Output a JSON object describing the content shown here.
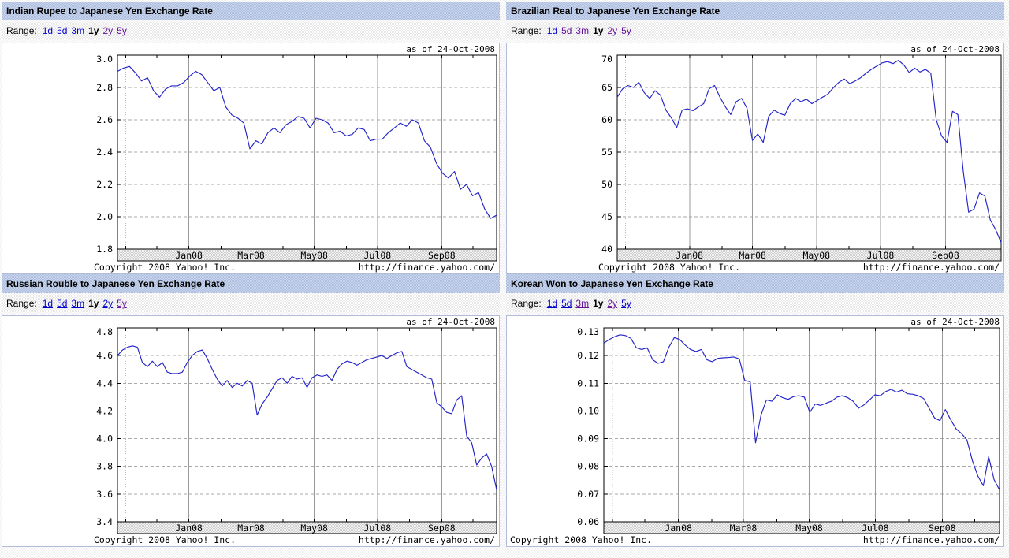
{
  "page": {
    "as_of_label": "as of 24-Oct-2008",
    "range_label": "Range:",
    "copyright": "Copyright 2008 Yahoo! Inc.",
    "source_url": "http://finance.yahoo.com/"
  },
  "colors": {
    "line": "#2424c8",
    "link": "#0000cc",
    "link_visited": "#661199",
    "title_bar": "#bcc9e5",
    "grid": "#aaaaaa",
    "frame": "#000000"
  },
  "panels": [
    {
      "range_links": [
        {
          "label": "1d",
          "visited": false
        },
        {
          "label": "5d",
          "visited": false
        },
        {
          "label": "3m",
          "visited": false
        },
        {
          "label": "1y",
          "selected": true
        },
        {
          "label": "2y",
          "visited": true
        },
        {
          "label": "5y",
          "visited": true
        }
      ]
    },
    {
      "range_links": [
        {
          "label": "1d",
          "visited": false
        },
        {
          "label": "5d",
          "visited": true
        },
        {
          "label": "3m",
          "visited": true
        },
        {
          "label": "1y",
          "selected": true
        },
        {
          "label": "2y",
          "visited": true
        },
        {
          "label": "5y",
          "visited": true
        }
      ]
    },
    {
      "range_links": [
        {
          "label": "1d",
          "visited": false
        },
        {
          "label": "5d",
          "visited": false
        },
        {
          "label": "3m",
          "visited": false
        },
        {
          "label": "1y",
          "selected": true
        },
        {
          "label": "2y",
          "visited": false
        },
        {
          "label": "5y",
          "visited": true
        }
      ]
    },
    {
      "range_links": [
        {
          "label": "1d",
          "visited": false
        },
        {
          "label": "5d",
          "visited": false
        },
        {
          "label": "3m",
          "visited": true
        },
        {
          "label": "1y",
          "selected": true
        },
        {
          "label": "2y",
          "visited": true
        },
        {
          "label": "5y",
          "visited": false
        }
      ]
    }
  ],
  "chart_data": [
    {
      "type": "line",
      "title": "Indian Rupee to Japanese Yen Exchange Rate",
      "as_of": "24-Oct-2008",
      "x_range": "24-Oct-2007 to 24-Oct-2008",
      "x_tick_labels": [
        "Jan08",
        "Mar08",
        "May08",
        "Jul08",
        "Sep08"
      ],
      "ylim": [
        1.8,
        3.0
      ],
      "y_ticks": [
        3.0,
        2.8,
        2.6,
        2.4,
        2.2,
        2.0,
        1.8
      ],
      "y_tick_labels": [
        "3.0",
        "2.8",
        "2.6",
        "2.4",
        "2.2",
        "2.0",
        "1.8"
      ],
      "values": [
        2.9,
        2.92,
        2.93,
        2.89,
        2.84,
        2.86,
        2.78,
        2.74,
        2.79,
        2.81,
        2.81,
        2.83,
        2.87,
        2.9,
        2.88,
        2.83,
        2.78,
        2.8,
        2.68,
        2.63,
        2.61,
        2.58,
        2.42,
        2.47,
        2.45,
        2.52,
        2.55,
        2.52,
        2.57,
        2.59,
        2.62,
        2.61,
        2.55,
        2.61,
        2.6,
        2.58,
        2.52,
        2.53,
        2.5,
        2.51,
        2.55,
        2.54,
        2.47,
        2.48,
        2.48,
        2.52,
        2.55,
        2.58,
        2.56,
        2.6,
        2.58,
        2.47,
        2.43,
        2.33,
        2.27,
        2.24,
        2.28,
        2.17,
        2.2,
        2.13,
        2.15,
        2.05,
        1.99,
        2.01
      ]
    },
    {
      "type": "line",
      "title": "Brazilian Real to Japanese Yen Exchange Rate",
      "as_of": "24-Oct-2008",
      "x_range": "24-Oct-2007 to 24-Oct-2008",
      "x_tick_labels": [
        "Jan08",
        "Mar08",
        "May08",
        "Jul08",
        "Sep08"
      ],
      "ylim": [
        40,
        70
      ],
      "y_ticks": [
        70,
        65,
        60,
        55,
        50,
        45,
        40
      ],
      "y_tick_labels": [
        "70",
        "65",
        "60",
        "55",
        "50",
        "45",
        "40"
      ],
      "values": [
        63.5,
        64.8,
        65.3,
        65.0,
        65.8,
        64.2,
        63.3,
        64.5,
        63.8,
        61.5,
        60.3,
        58.8,
        61.5,
        61.7,
        61.4,
        62.0,
        62.5,
        64.8,
        65.3,
        63.5,
        62.0,
        60.8,
        62.8,
        63.3,
        61.8,
        56.8,
        57.8,
        56.5,
        60.5,
        61.5,
        61.0,
        60.7,
        62.5,
        63.3,
        62.8,
        63.2,
        62.5,
        63.0,
        63.5,
        64.0,
        65.0,
        65.8,
        66.3,
        65.6,
        66.0,
        66.5,
        67.2,
        67.8,
        68.3,
        68.8,
        69.0,
        68.7,
        69.2,
        68.5,
        67.3,
        68.0,
        67.4,
        67.8,
        67.2,
        60.0,
        57.5,
        56.5,
        61.3,
        60.8,
        52.0,
        45.7,
        46.2,
        48.7,
        48.2,
        44.5,
        43.0,
        41.0
      ]
    },
    {
      "type": "line",
      "title": "Russian Rouble to Japanese Yen Exchange Rate",
      "as_of": "24-Oct-2008",
      "x_range": "24-Oct-2007 to 24-Oct-2008",
      "x_tick_labels": [
        "Jan08",
        "Mar08",
        "May08",
        "Jul08",
        "Sep08"
      ],
      "ylim": [
        3.4,
        4.8
      ],
      "y_ticks": [
        4.8,
        4.6,
        4.4,
        4.2,
        4.0,
        3.8,
        3.6,
        3.4
      ],
      "y_tick_labels": [
        "4.8",
        "4.6",
        "4.4",
        "4.2",
        "4.0",
        "3.8",
        "3.6",
        "3.4"
      ],
      "values": [
        4.6,
        4.64,
        4.66,
        4.67,
        4.66,
        4.55,
        4.52,
        4.56,
        4.52,
        4.55,
        4.48,
        4.47,
        4.47,
        4.48,
        4.55,
        4.6,
        4.63,
        4.64,
        4.58,
        4.5,
        4.43,
        4.38,
        4.42,
        4.37,
        4.4,
        4.38,
        4.42,
        4.4,
        4.17,
        4.25,
        4.3,
        4.36,
        4.42,
        4.44,
        4.4,
        4.45,
        4.43,
        4.44,
        4.37,
        4.44,
        4.46,
        4.45,
        4.46,
        4.42,
        4.5,
        4.54,
        4.56,
        4.55,
        4.53,
        4.55,
        4.57,
        4.58,
        4.59,
        4.6,
        4.58,
        4.6,
        4.62,
        4.63,
        4.52,
        4.5,
        4.48,
        4.46,
        4.44,
        4.43,
        4.26,
        4.23,
        4.19,
        4.18,
        4.28,
        4.31,
        4.02,
        3.97,
        3.81,
        3.86,
        3.89,
        3.8,
        3.63
      ]
    },
    {
      "type": "line",
      "title": "Korean Won to Japanese Yen Exchange Rate",
      "as_of": "24-Oct-2008",
      "x_range": "24-Oct-2007 to 24-Oct-2008",
      "x_tick_labels": [
        "Jan08",
        "Mar08",
        "May08",
        "Jul08",
        "Sep08"
      ],
      "ylim": [
        0.06,
        0.13
      ],
      "y_ticks": [
        0.13,
        0.12,
        0.11,
        0.1,
        0.09,
        0.08,
        0.07,
        0.06
      ],
      "y_tick_labels": [
        "0.13",
        "0.12",
        "0.11",
        "0.10",
        "0.09",
        "0.08",
        "0.07",
        "0.06"
      ],
      "values": [
        0.1245,
        0.1258,
        0.1268,
        0.1275,
        0.1272,
        0.1262,
        0.1228,
        0.1222,
        0.1228,
        0.1185,
        0.1172,
        0.1178,
        0.123,
        0.1265,
        0.1258,
        0.1238,
        0.1222,
        0.1215,
        0.1222,
        0.1185,
        0.1178,
        0.119,
        0.1192,
        0.1193,
        0.1195,
        0.1188,
        0.111,
        0.1105,
        0.0885,
        0.0985,
        0.104,
        0.1035,
        0.1058,
        0.1048,
        0.1042,
        0.1052,
        0.1055,
        0.105,
        0.0995,
        0.1025,
        0.102,
        0.1028,
        0.1035,
        0.105,
        0.1055,
        0.1048,
        0.1035,
        0.101,
        0.1022,
        0.104,
        0.1058,
        0.1055,
        0.107,
        0.1078,
        0.1068,
        0.1075,
        0.1062,
        0.106,
        0.1055,
        0.1045,
        0.101,
        0.0975,
        0.0965,
        0.1005,
        0.0968,
        0.0935,
        0.0918,
        0.0895,
        0.082,
        0.0765,
        0.073,
        0.0835,
        0.0752,
        0.0715
      ]
    }
  ]
}
